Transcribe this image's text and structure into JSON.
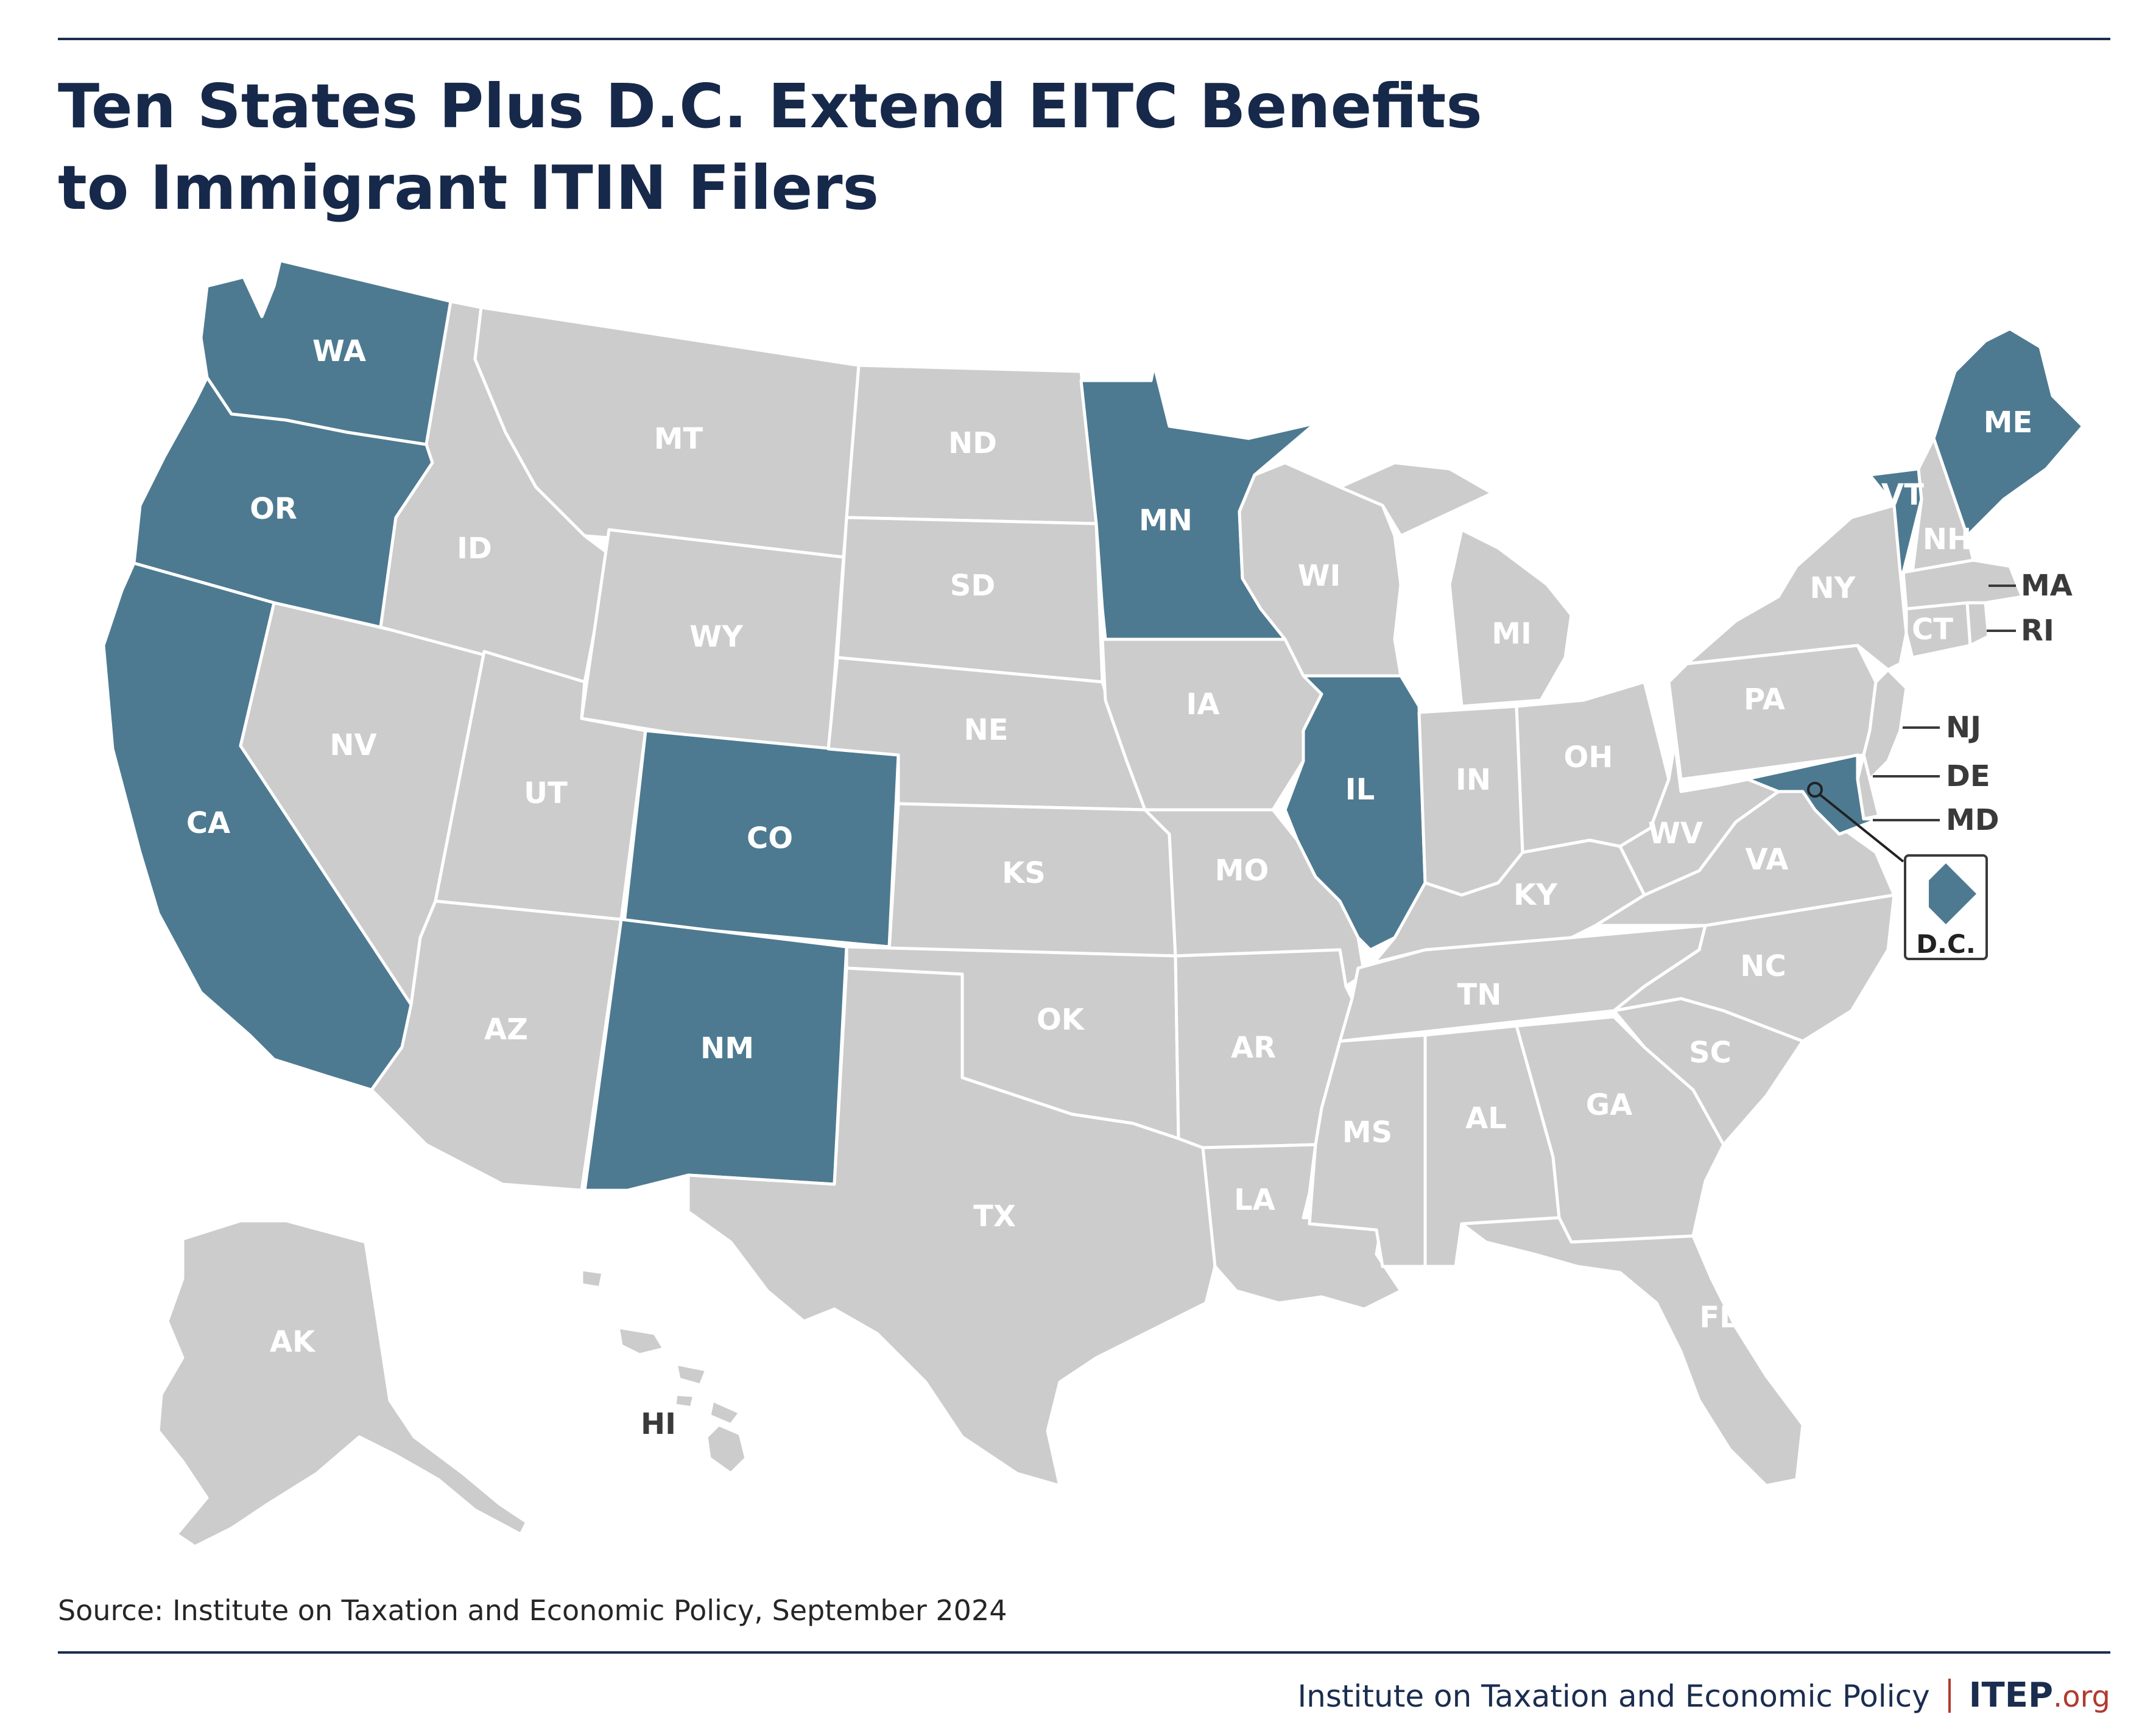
{
  "title": {
    "line1": "Ten States Plus D.C. Extend EITC Benefits",
    "line2": "to Immigrant ITIN Filers"
  },
  "source": "Source: Institute on Taxation and Economic Policy, September 2024",
  "footer": {
    "org_name": "Institute on Taxation and Economic Policy",
    "brand": "ITEP",
    "brand_suffix": ".org"
  },
  "colors": {
    "highlight": "#4d7a91",
    "other": "#cccccc",
    "border": "#ffffff",
    "label_on_highlight": "#ffffff",
    "label_on_other": "#ffffff",
    "label_outside": "#3a3a3a",
    "title": "#17294a",
    "rule": "#1b2d4f",
    "accent": "#b23a2f"
  },
  "highlighted_states": [
    "WA",
    "OR",
    "CA",
    "CO",
    "NM",
    "MN",
    "IL",
    "MD",
    "VT",
    "ME",
    "DC"
  ],
  "states": {
    "WA": "WA",
    "OR": "OR",
    "CA": "CA",
    "ID": "ID",
    "NV": "NV",
    "MT": "MT",
    "WY": "WY",
    "UT": "UT",
    "AZ": "AZ",
    "CO": "CO",
    "NM": "NM",
    "ND": "ND",
    "SD": "SD",
    "NE": "NE",
    "KS": "KS",
    "OK": "OK",
    "TX": "TX",
    "MN": "MN",
    "IA": "IA",
    "MO": "MO",
    "AR": "AR",
    "LA": "LA",
    "WI": "WI",
    "IL": "IL",
    "MI": "MI",
    "IN": "IN",
    "OH": "OH",
    "KY": "KY",
    "TN": "TN",
    "MS": "MS",
    "AL": "AL",
    "GA": "GA",
    "FL": "FL",
    "SC": "SC",
    "NC": "NC",
    "VA": "VA",
    "WV": "WV",
    "PA": "PA",
    "NY": "NY",
    "VT": "VT",
    "NH": "NH",
    "ME": "ME",
    "MA": "MA",
    "RI": "RI",
    "CT": "CT",
    "NJ": "NJ",
    "DE": "DE",
    "MD": "MD",
    "DC": "D.C.",
    "AK": "AK",
    "HI": "HI"
  }
}
